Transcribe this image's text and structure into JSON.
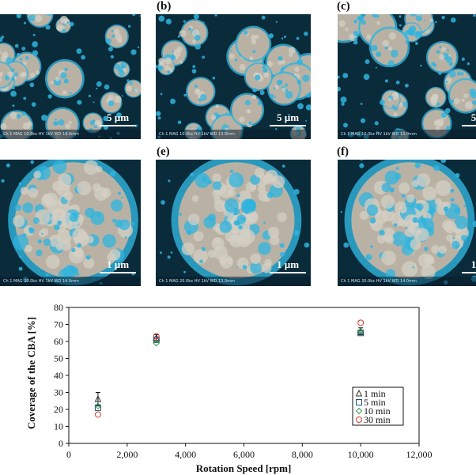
{
  "panels": [
    {
      "label": "",
      "scale": "5 µm",
      "info": "Ch 1   MAG 10.0kx  HV 1kV  WD 14.0mm"
    },
    {
      "label": "(b)",
      "scale": "5 µm",
      "info": "Ch 1   MAG 10.0kx  HV 1kV  WD 13.0mm"
    },
    {
      "label": "(c)",
      "scale": "5",
      "info": "Ch 1   MAG 10.0kx  HV 1kV  WD 13.0mm"
    },
    {
      "label": "",
      "scale": "1 µm",
      "info": "Ch 1   MAG 20.0kx  HV 1kV  WD 14.0mm"
    },
    {
      "label": "(e)",
      "scale": "1 µm",
      "info": "Ch 1   MAG 20.0kx  HV 1kV  WD 13.0mm"
    },
    {
      "label": "(f)",
      "scale": "1",
      "info": "Ch 1   MAG 20.0kx  HV 1kV  WD 14.0mm"
    }
  ],
  "colors": {
    "particle": "#b9b2a4",
    "cba": "#2fb4df",
    "background": "#0a2b3a"
  },
  "chart_data": {
    "type": "scatter",
    "xlabel": "Rotation Speed [rpm]",
    "ylabel": "Coverage of the CBA [%]",
    "xlim": [
      0,
      12000
    ],
    "ylim": [
      0,
      80
    ],
    "xticks": [
      "0",
      "2,000",
      "4,000",
      "6,000",
      "8,000",
      "10,000",
      "12,000"
    ],
    "yticks": [
      "0",
      "10",
      "20",
      "30",
      "40",
      "50",
      "60",
      "70",
      "80"
    ],
    "legend_position": "right",
    "series": [
      {
        "name": "1 min",
        "marker": "triangle",
        "color": "#333333",
        "x": [
          1000,
          3000,
          10000
        ],
        "y": [
          26,
          62,
          66
        ],
        "err": [
          4,
          2,
          2
        ]
      },
      {
        "name": "5 min",
        "marker": "square",
        "color": "#1f4e79",
        "x": [
          1000,
          3000,
          10000
        ],
        "y": [
          21,
          61,
          65
        ],
        "err": [
          0,
          0,
          0
        ]
      },
      {
        "name": "10 min",
        "marker": "diamond",
        "color": "#2e9e4a",
        "x": [
          1000,
          3000,
          10000
        ],
        "y": [
          22,
          59,
          66
        ],
        "err": [
          0,
          0,
          0
        ]
      },
      {
        "name": "30 min",
        "marker": "circle",
        "color": "#d83a2c",
        "x": [
          1000,
          3000,
          10000
        ],
        "y": [
          17,
          63,
          71
        ],
        "err": [
          0,
          0,
          0
        ]
      }
    ]
  }
}
